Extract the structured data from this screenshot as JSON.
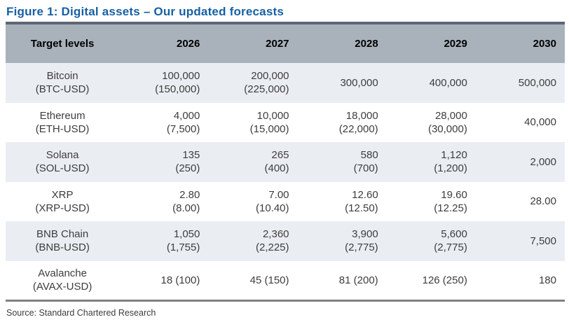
{
  "figure": {
    "title": "Figure 1: Digital assets – Our updated forecasts",
    "source": "Source: Standard Chartered Research"
  },
  "table": {
    "header": [
      "Target levels",
      "2026",
      "2027",
      "2028",
      "2029",
      "2030"
    ],
    "rows": [
      {
        "asset": "Bitcoin",
        "ticker": "(BTC-USD)",
        "cells": [
          [
            "100,000",
            "(150,000)"
          ],
          [
            "200,000",
            "(225,000)"
          ],
          [
            "300,000"
          ],
          [
            "400,000"
          ],
          [
            "500,000"
          ]
        ]
      },
      {
        "asset": "Ethereum",
        "ticker": "(ETH-USD)",
        "cells": [
          [
            "4,000",
            "(7,500)"
          ],
          [
            "10,000",
            "(15,000)"
          ],
          [
            "18,000",
            "(22,000)"
          ],
          [
            "28,000",
            "(30,000)"
          ],
          [
            "40,000"
          ]
        ]
      },
      {
        "asset": "Solana",
        "ticker": "(SOL-USD)",
        "cells": [
          [
            "135",
            "(250)"
          ],
          [
            "265",
            "(400)"
          ],
          [
            "580",
            "(700)"
          ],
          [
            "1,120",
            "(1,200)"
          ],
          [
            "2,000"
          ]
        ]
      },
      {
        "asset": "XRP",
        "ticker": "(XRP-USD)",
        "cells": [
          [
            "2.80",
            "(8.00)"
          ],
          [
            "7.00",
            "(10.40)"
          ],
          [
            "12.60",
            "(12.50)"
          ],
          [
            "19.60",
            "(12.25)"
          ],
          [
            "28.00"
          ]
        ]
      },
      {
        "asset": "BNB Chain",
        "ticker": "(BNB-USD)",
        "cells": [
          [
            "1,050",
            "(1,755)"
          ],
          [
            "2,360",
            "(2,225)"
          ],
          [
            "3,900",
            "(2,775)"
          ],
          [
            "5,600",
            "(2,775)"
          ],
          [
            "7,500"
          ]
        ]
      },
      {
        "asset": "Avalanche",
        "ticker": "(AVAX-USD)",
        "cells": [
          [
            "18 (100)"
          ],
          [
            "45 (150)"
          ],
          [
            "81 (200)"
          ],
          [
            "126 (250)"
          ],
          [
            "180"
          ]
        ]
      }
    ]
  },
  "colors": {
    "title_blue": "#1660a4",
    "header_bg": "#a9b2ba",
    "shaded_row_bg": "#eaeef3",
    "top_border": "#5b6874",
    "bottom_border": "#7e8285",
    "cell_text": "#3d3d3d"
  }
}
